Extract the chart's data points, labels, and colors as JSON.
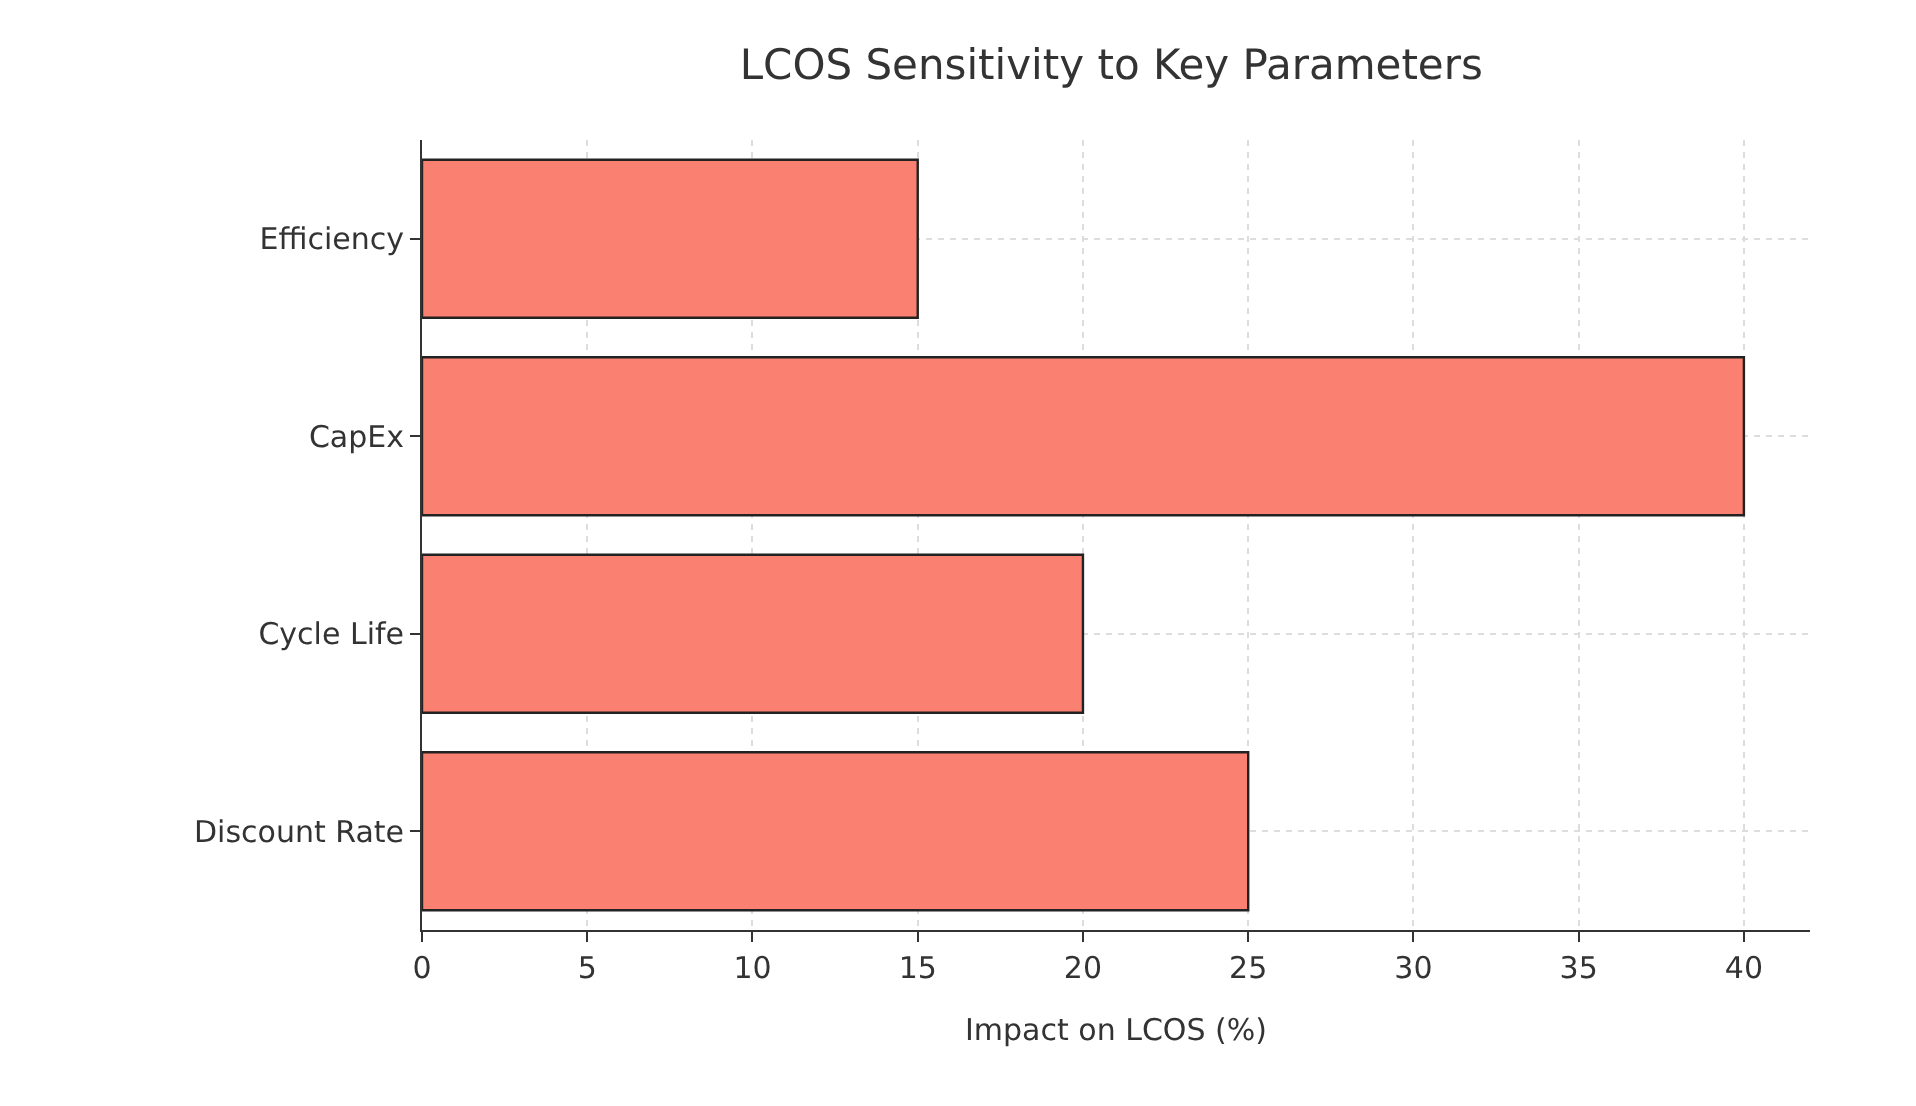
{
  "chart_data": {
    "type": "bar",
    "orientation": "horizontal",
    "title": "LCOS Sensitivity to Key Parameters",
    "xlabel": "Impact on LCOS (%)",
    "categories": [
      "Efficiency",
      "CapEx",
      "Cycle Life",
      "Discount Rate"
    ],
    "values": [
      15,
      40,
      20,
      25
    ],
    "color": "#fa8072",
    "xlim": [
      0,
      42
    ],
    "xticks": [
      0,
      5,
      10,
      15,
      20,
      25,
      30,
      35,
      40
    ],
    "grid": true
  }
}
